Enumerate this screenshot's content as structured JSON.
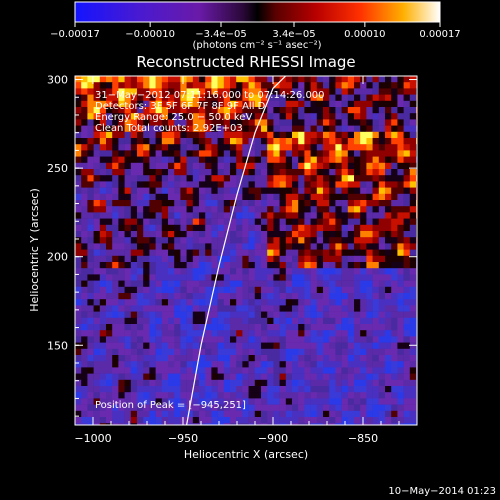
{
  "chart_data": {
    "type": "heatmap",
    "title": "Reconstructed RHESSI Image",
    "xlabel": "Heliocentric X (arcsec)",
    "ylabel": "Heliocentric Y (arcsec)",
    "xlim": [
      -1010,
      -820
    ],
    "ylim": [
      105,
      302
    ],
    "xticks": [
      -1000,
      -950,
      -900,
      -850
    ],
    "xtick_labels": [
      "−1000",
      "−950",
      "−900",
      "−850"
    ],
    "yticks": [
      150,
      200,
      250,
      300
    ],
    "ytick_labels": [
      "150",
      "200",
      "250",
      "300"
    ],
    "colorbar": {
      "range": [
        -0.00017,
        0.00017
      ],
      "ticks": [
        -0.00017,
        -0.0001,
        -3.4e-05,
        3.4e-05,
        0.0001,
        0.00017
      ],
      "tick_labels": [
        "−0.00017",
        "−0.00010",
        "−3.4e−05",
        "3.4e−05",
        "0.00010",
        "0.00017"
      ],
      "unit": "(photons cm⁻² s⁻¹ asec⁻²)",
      "colors": [
        "#0000ff",
        "#3f00c0",
        "#6e1aa8",
        "#000000",
        "#b00000",
        "#ff4000",
        "#ffc000",
        "#ffffff"
      ]
    },
    "info_lines": [
      "31−May−2012 07:11:16.000 to 07:14:26.000",
      "Detectors: 3F 5F 6F 7F 8F 9F All D",
      "Energy Range: 25.0 − 50.0 keV",
      "Clean     Total counts: 2.92E+03"
    ],
    "peak_label": "Position of Peak = [−945,251]",
    "peak": [
      -945,
      251
    ],
    "limb_curve": {
      "x": [
        -948,
        -940,
        -930,
        -920,
        -910,
        -900,
        -893
      ],
      "y": [
        105,
        150,
        195,
        235,
        270,
        295,
        302
      ]
    },
    "grid": false
  },
  "footer": {
    "timestamp": "10−May−2014 01:23"
  }
}
